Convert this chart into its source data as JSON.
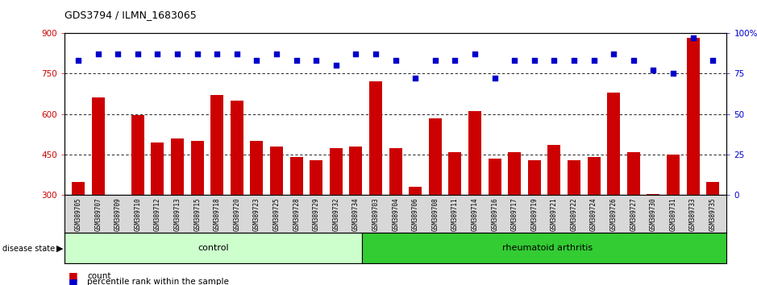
{
  "title": "GDS3794 / ILMN_1683065",
  "samples": [
    "GSM389705",
    "GSM389707",
    "GSM389709",
    "GSM389710",
    "GSM389712",
    "GSM389713",
    "GSM389715",
    "GSM389718",
    "GSM389720",
    "GSM389723",
    "GSM389725",
    "GSM389728",
    "GSM389729",
    "GSM389732",
    "GSM389734",
    "GSM389703",
    "GSM389704",
    "GSM389706",
    "GSM389708",
    "GSM389711",
    "GSM389714",
    "GSM389716",
    "GSM389717",
    "GSM389719",
    "GSM389721",
    "GSM389722",
    "GSM389724",
    "GSM389726",
    "GSM389727",
    "GSM389730",
    "GSM389731",
    "GSM389733",
    "GSM389735"
  ],
  "bar_values": [
    350,
    660,
    300,
    595,
    495,
    510,
    500,
    670,
    650,
    500,
    480,
    440,
    430,
    475,
    480,
    720,
    475,
    330,
    585,
    460,
    610,
    435,
    460,
    430,
    485,
    430,
    440,
    680,
    460,
    305,
    450,
    880,
    350
  ],
  "percentile_values": [
    83,
    87,
    87,
    87,
    87,
    87,
    87,
    87,
    87,
    83,
    87,
    83,
    83,
    80,
    87,
    87,
    83,
    72,
    83,
    83,
    87,
    72,
    83,
    83,
    83,
    83,
    83,
    87,
    83,
    77,
    75,
    97,
    83
  ],
  "n_control": 15,
  "n_ra": 18,
  "ymin": 300,
  "ymax": 900,
  "yticks_left": [
    300,
    450,
    600,
    750,
    900
  ],
  "ytick_labels_left": [
    "300",
    "450",
    "600",
    "750",
    "900"
  ],
  "yticks_right": [
    0,
    25,
    50,
    75,
    100
  ],
  "ytick_labels_right": [
    "0",
    "25",
    "50",
    "75",
    "100%"
  ],
  "grid_values": [
    450,
    600,
    750
  ],
  "bar_color": "#cc0000",
  "percentile_color": "#0000cc",
  "control_bg_color": "#ccffcc",
  "ra_bg_color": "#33cc33",
  "plot_bg_color": "#ffffff",
  "tick_area_bg": "#d8d8d8",
  "legend_count_color": "#cc0000",
  "legend_pct_color": "#0000cc"
}
